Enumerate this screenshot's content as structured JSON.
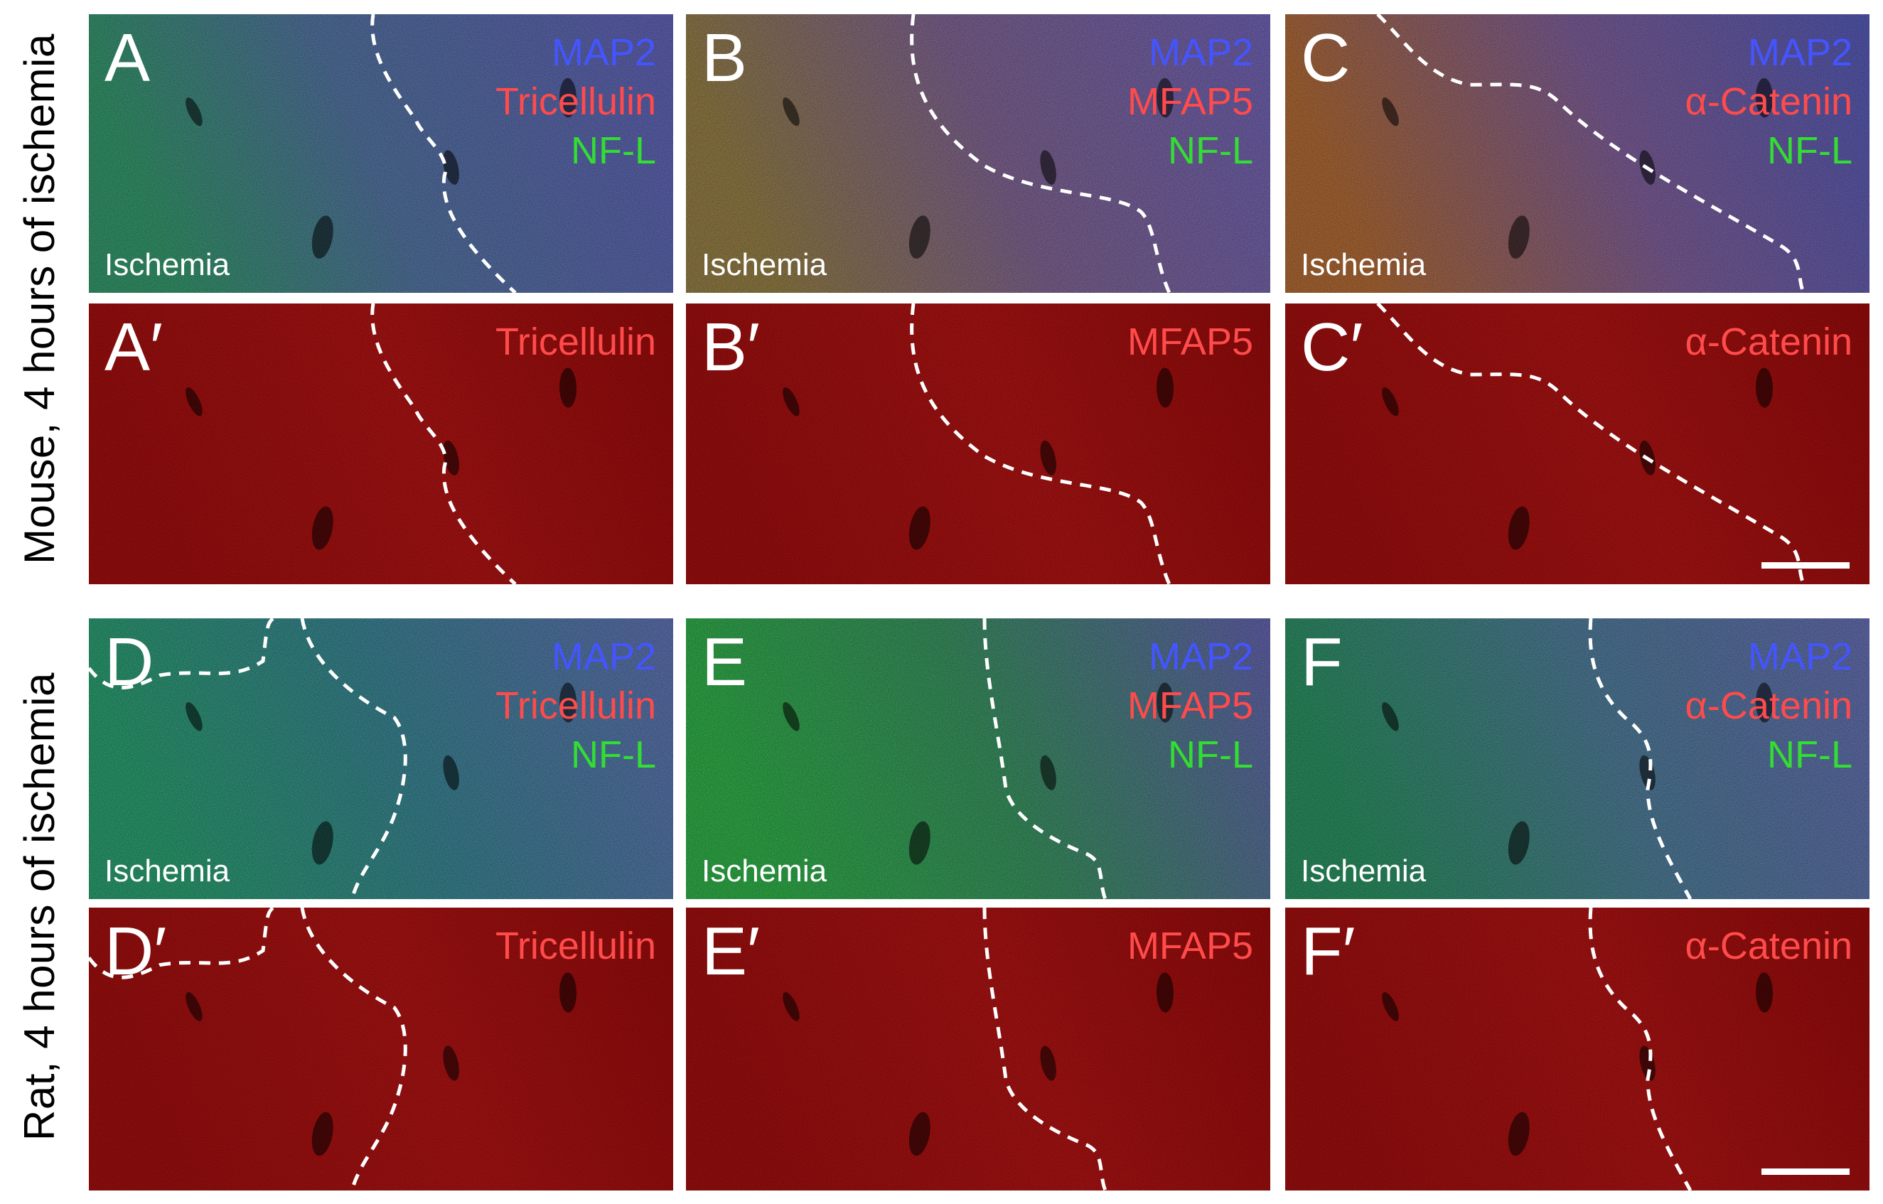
{
  "rows": [
    {
      "label": "Mouse, 4 hours of ischemia"
    },
    {
      "label": "Rat, 4 hours of ischemia"
    }
  ],
  "panels": [
    {
      "letter": "A",
      "markers": [
        {
          "text": "MAP2",
          "color": "blue"
        },
        {
          "text": "Tricellulin",
          "color": "red"
        },
        {
          "text": "NF-L",
          "color": "green"
        }
      ],
      "region": "Ischemia"
    },
    {
      "letter": "B",
      "markers": [
        {
          "text": "MAP2",
          "color": "blue"
        },
        {
          "text": "MFAP5",
          "color": "red"
        },
        {
          "text": "NF-L",
          "color": "green"
        }
      ],
      "region": "Ischemia"
    },
    {
      "letter": "C",
      "markers": [
        {
          "text": "MAP2",
          "color": "blue"
        },
        {
          "text": "α-Catenin",
          "color": "red"
        },
        {
          "text": "NF-L",
          "color": "green"
        }
      ],
      "region": "Ischemia"
    },
    {
      "letter": "A′",
      "markers": [
        {
          "text": "Tricellulin",
          "color": "red"
        }
      ],
      "region": ""
    },
    {
      "letter": "B′",
      "markers": [
        {
          "text": "MFAP5",
          "color": "red"
        }
      ],
      "region": ""
    },
    {
      "letter": "C′",
      "markers": [
        {
          "text": "α-Catenin",
          "color": "red"
        }
      ],
      "region": "",
      "scale_bar": true
    },
    {
      "letter": "D",
      "markers": [
        {
          "text": "MAP2",
          "color": "blue"
        },
        {
          "text": "Tricellulin",
          "color": "red"
        },
        {
          "text": "NF-L",
          "color": "green"
        }
      ],
      "region": "Ischemia"
    },
    {
      "letter": "E",
      "markers": [
        {
          "text": "MAP2",
          "color": "blue"
        },
        {
          "text": "MFAP5",
          "color": "red"
        },
        {
          "text": "NF-L",
          "color": "green"
        }
      ],
      "region": "Ischemia"
    },
    {
      "letter": "F",
      "markers": [
        {
          "text": "MAP2",
          "color": "blue"
        },
        {
          "text": "α-Catenin",
          "color": "red"
        },
        {
          "text": "NF-L",
          "color": "green"
        }
      ],
      "region": "Ischemia"
    },
    {
      "letter": "D′",
      "markers": [
        {
          "text": "Tricellulin",
          "color": "red"
        }
      ],
      "region": ""
    },
    {
      "letter": "E′",
      "markers": [
        {
          "text": "MFAP5",
          "color": "red"
        }
      ],
      "region": ""
    },
    {
      "letter": "F′",
      "markers": [
        {
          "text": "α-Catenin",
          "color": "red"
        }
      ],
      "region": "",
      "scale_bar": true
    }
  ],
  "colors": {
    "blue_marker": "#4455ff",
    "red_marker": "#ff4b4b",
    "green_marker": "#33dd33",
    "boundary_line": "#ffffff"
  }
}
